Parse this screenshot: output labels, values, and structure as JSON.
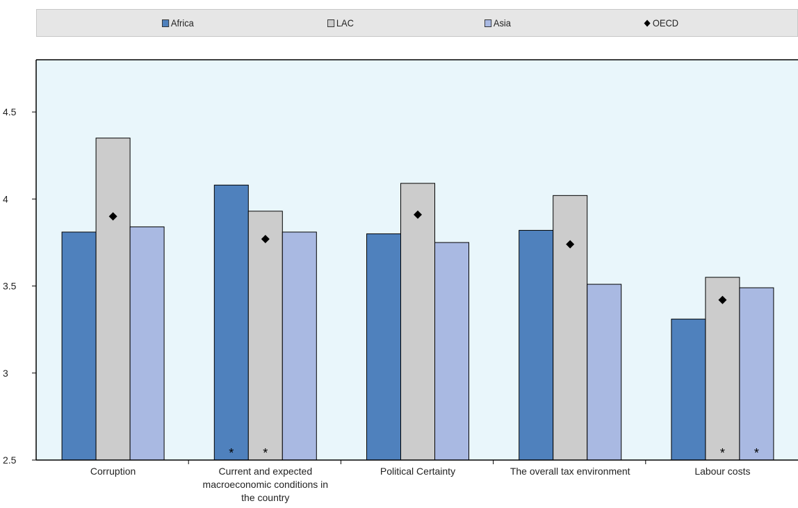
{
  "chart_data": {
    "type": "bar",
    "categories": [
      [
        "Corruption"
      ],
      [
        "Current and expected",
        "macroeconomic conditions in",
        "the country"
      ],
      [
        "Political Certainty"
      ],
      [
        "The overall tax environment"
      ],
      [
        "Labour costs"
      ]
    ],
    "series": [
      {
        "name": "Africa",
        "values": [
          3.81,
          4.08,
          3.8,
          3.82,
          3.31
        ],
        "color": "#4f81bd"
      },
      {
        "name": "LAC",
        "values": [
          4.35,
          3.93,
          4.09,
          4.02,
          3.55
        ],
        "color": "#cccccc"
      },
      {
        "name": "Asia",
        "values": [
          3.84,
          3.81,
          3.75,
          3.51,
          3.49
        ],
        "color": "#a9b9e2"
      }
    ],
    "markers": {
      "name": "OECD",
      "values": [
        3.9,
        3.77,
        3.91,
        3.74,
        3.42
      ]
    },
    "significance": [
      {
        "category": 1,
        "series": "Africa",
        "label": "*"
      },
      {
        "category": 1,
        "series": "LAC",
        "label": "*"
      },
      {
        "category": 4,
        "series": "LAC",
        "label": "*"
      },
      {
        "category": 4,
        "series": "Asia",
        "label": "*"
      }
    ],
    "ylim": [
      2.5,
      4.8
    ],
    "yticks": [
      2.5,
      3,
      3.5,
      4,
      4.5
    ],
    "ytick_labels": [
      "2.5",
      "3",
      "3.5",
      "4",
      "4.5"
    ],
    "plot_background": "#e9f6fb",
    "legend_position": "top",
    "grid": false
  },
  "legend": {
    "africa": "Africa",
    "lac": "LAC",
    "asia": "Asia",
    "oecd": "OECD"
  }
}
